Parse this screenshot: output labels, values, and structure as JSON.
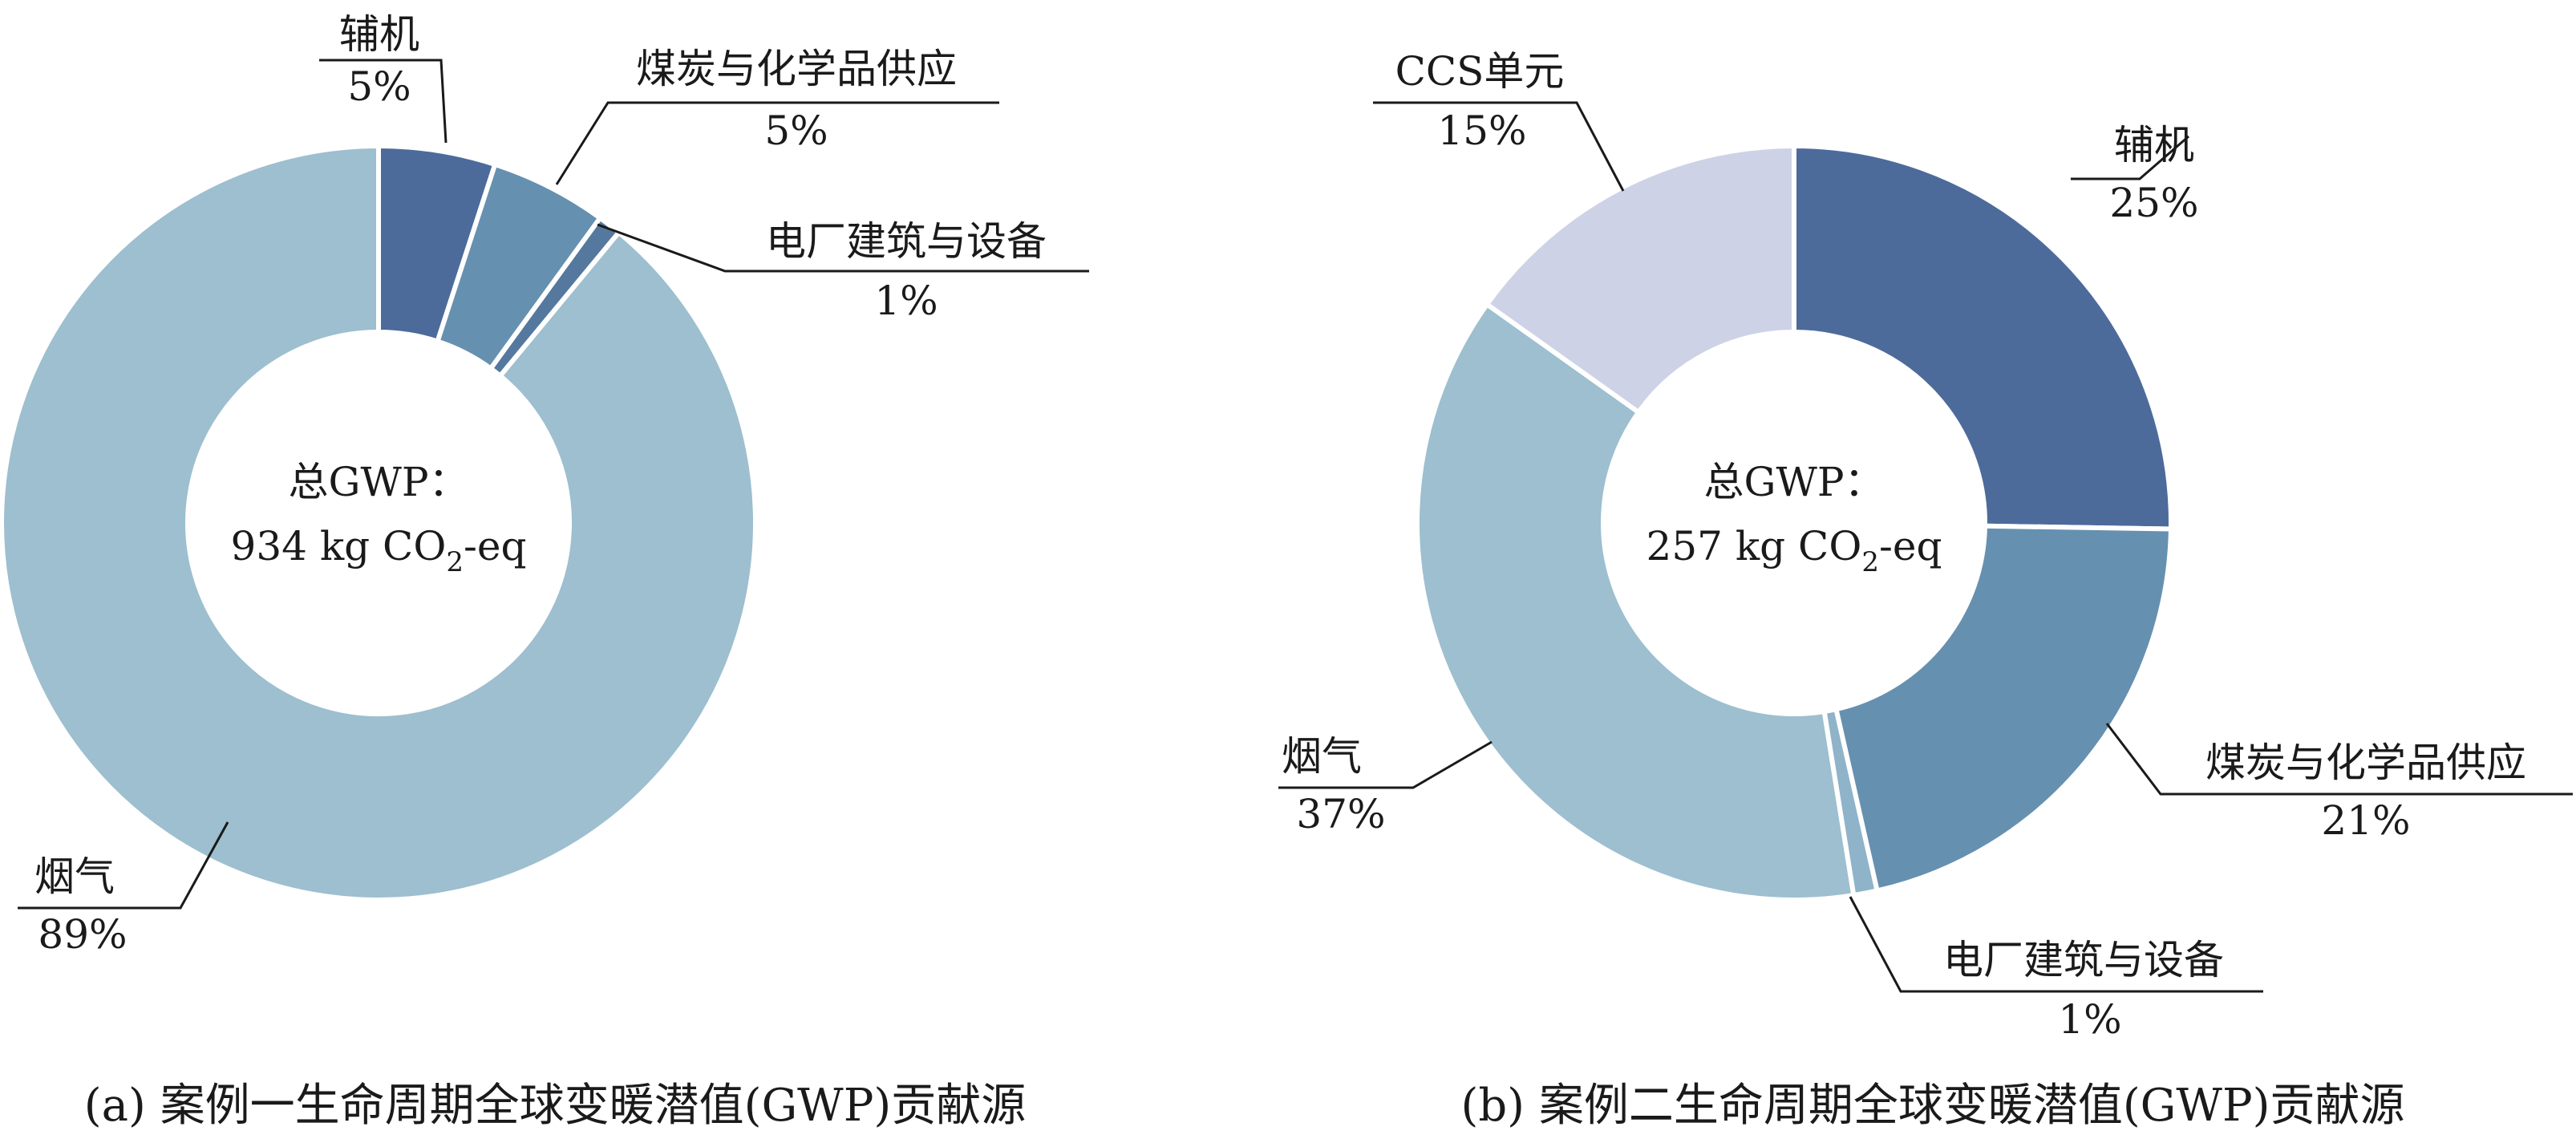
{
  "chart_data": [
    {
      "type": "pie",
      "caption": "(a) 案例一生命周期全球变暖潜值(GWP)贡献源",
      "center_label": {
        "line1": "总GWP：",
        "value": "934 kg CO",
        "subscript": "2",
        "unit_suffix": "-eq"
      },
      "slices": [
        {
          "name": "辅机",
          "value": 5,
          "label_value": "5%",
          "color": "#4c6b9b"
        },
        {
          "name": "煤炭与化学品供应",
          "value": 5,
          "label_value": "5%",
          "color": "#6690b0"
        },
        {
          "name": "电厂建筑与设备",
          "value": 1,
          "label_value": "1%",
          "color": "#55789f"
        },
        {
          "name": "烟气",
          "value": 89,
          "label_value": "89%",
          "color": "#9dbfcf"
        }
      ]
    },
    {
      "type": "pie",
      "caption": "(b) 案例二生命周期全球变暖潜值(GWP)贡献源",
      "center_label": {
        "line1": "总GWP：",
        "value": "257 kg CO",
        "subscript": "2",
        "unit_suffix": "-eq"
      },
      "slices": [
        {
          "name": "辅机",
          "value": 25,
          "label_value": "25%",
          "color": "#4c6b9b"
        },
        {
          "name": "煤炭与化学品供应",
          "value": 21,
          "label_value": "21%",
          "color": "#6690b0"
        },
        {
          "name": "电厂建筑与设备",
          "value": 1,
          "label_value": "1%",
          "color": "#8fb3c9"
        },
        {
          "name": "烟气",
          "value": 37,
          "label_value": "37%",
          "color": "#9dbfcf"
        },
        {
          "name": "CCS单元",
          "value": 15,
          "label_value": "15%",
          "color": "#cdd2e6"
        }
      ]
    }
  ]
}
